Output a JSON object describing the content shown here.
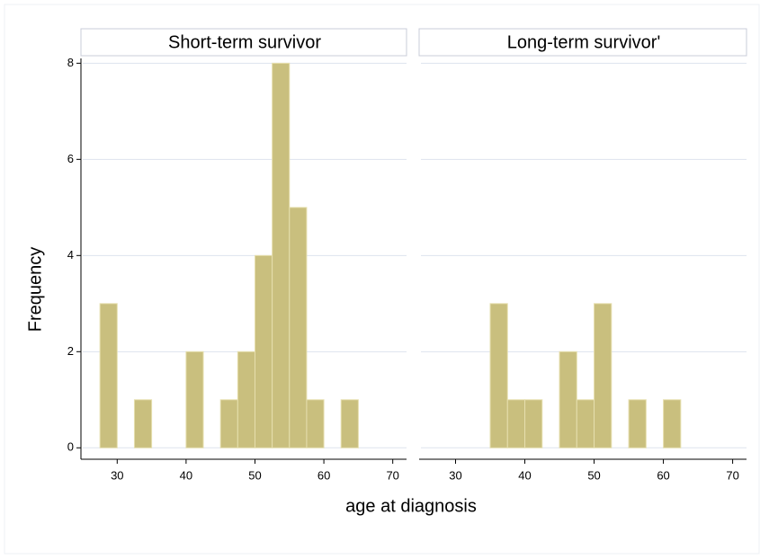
{
  "chart_data": {
    "type": "histogram",
    "xlabel": "age at diagnosis",
    "ylabel": "Frequency",
    "bins": [
      27.5,
      30,
      32.5,
      35,
      37.5,
      40,
      42.5,
      45,
      47.5,
      50,
      52.5,
      55,
      57.5,
      60,
      62.5,
      65
    ],
    "xlim": [
      25,
      72
    ],
    "xticks": [
      30,
      40,
      50,
      60,
      70
    ],
    "ylim": [
      -0.2,
      8.1
    ],
    "yticks": [
      0,
      2,
      4,
      6,
      8
    ],
    "grid": true,
    "color": "#c9bf7e",
    "panels": [
      {
        "title": "Short-term survivor",
        "counts": [
          3,
          0,
          1,
          0,
          0,
          2,
          0,
          1,
          2,
          4,
          8,
          5,
          1,
          0,
          1
        ]
      },
      {
        "title": "Long-term survivor'",
        "counts": [
          0,
          0,
          0,
          3,
          1,
          1,
          0,
          2,
          1,
          3,
          0,
          1,
          0,
          1,
          0
        ]
      }
    ]
  }
}
